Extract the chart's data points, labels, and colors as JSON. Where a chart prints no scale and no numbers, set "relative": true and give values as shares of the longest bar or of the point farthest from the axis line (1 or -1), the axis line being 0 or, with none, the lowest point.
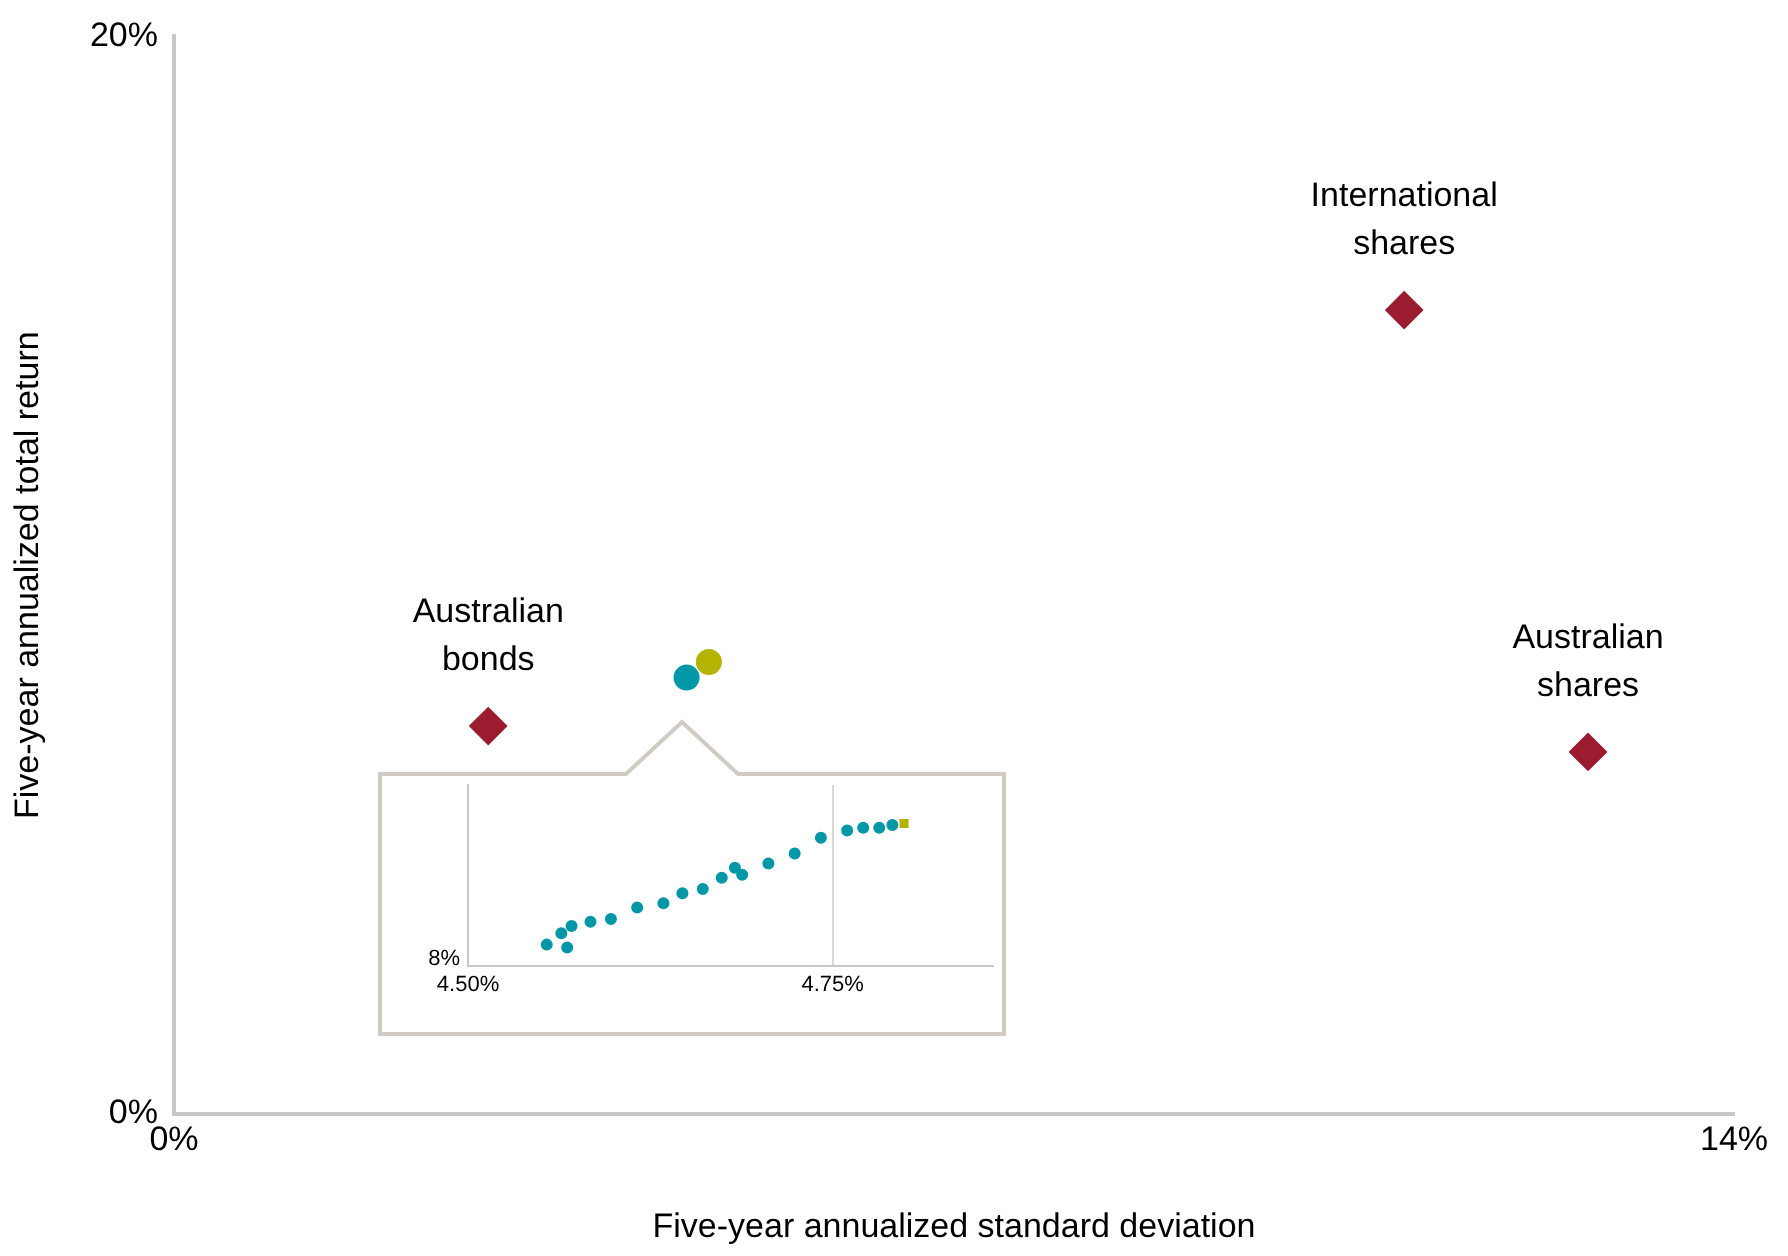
{
  "chart_data": [
    {
      "type": "scatter",
      "xlabel": "Five-year annualized standard deviation",
      "ylabel": "Five-year annualized total return",
      "xlim": [
        0,
        14
      ],
      "ylim": [
        0,
        20
      ],
      "xticks": [
        {
          "value": 0,
          "label": "0%"
        },
        {
          "value": 14,
          "label": "14%"
        }
      ],
      "yticks": [
        {
          "value": 0,
          "label": "0%"
        },
        {
          "value": 20,
          "label": "20%"
        }
      ],
      "grid": false,
      "legend": false,
      "series": [
        {
          "color": "#9b1b30",
          "marker": "diamond",
          "x": [
            2.82,
            11.04,
            12.69
          ],
          "values": [
            7.2,
            14.92,
            6.72
          ]
        },
        {
          "color": "#0097a7",
          "marker": "circle",
          "x": [
            4.6
          ],
          "values": [
            8.1
          ]
        },
        {
          "color": "#b3b300",
          "marker": "circle",
          "x": [
            4.8
          ],
          "values": [
            8.39
          ]
        }
      ],
      "annotations": [
        {
          "text": "Australian bonds",
          "x": 2.82,
          "y": 7.2
        },
        {
          "text": "International shares",
          "x": 11.04,
          "y": 14.92
        },
        {
          "text": "Australian shares",
          "x": 12.69,
          "y": 6.72
        }
      ]
    },
    {
      "type": "scatter",
      "xlim": [
        4.5,
        4.86
      ],
      "xticks": [
        {
          "value": 4.5,
          "label": "4.50%"
        },
        {
          "value": 4.75,
          "label": "4.75%"
        }
      ],
      "relative": true,
      "grid": "x",
      "legend": false,
      "annotations": [
        "8%"
      ],
      "series": [
        {
          "color": "#0097a7",
          "marker": "circle",
          "x": [
            4.554,
            4.564,
            4.571,
            4.568,
            4.584,
            4.598,
            4.616,
            4.634,
            4.647,
            4.661,
            4.674,
            4.683,
            4.688,
            4.706,
            4.724,
            4.742,
            4.76,
            4.771,
            4.782,
            4.791
          ],
          "values": [
            0.15,
            0.23,
            0.28,
            0.13,
            0.31,
            0.33,
            0.41,
            0.44,
            0.51,
            0.54,
            0.62,
            0.69,
            0.64,
            0.72,
            0.79,
            0.9,
            0.95,
            0.97,
            0.97,
            0.99
          ]
        },
        {
          "color": "#b3b300",
          "marker": "square",
          "x": [
            4.799
          ],
          "values": [
            1
          ]
        }
      ]
    }
  ]
}
